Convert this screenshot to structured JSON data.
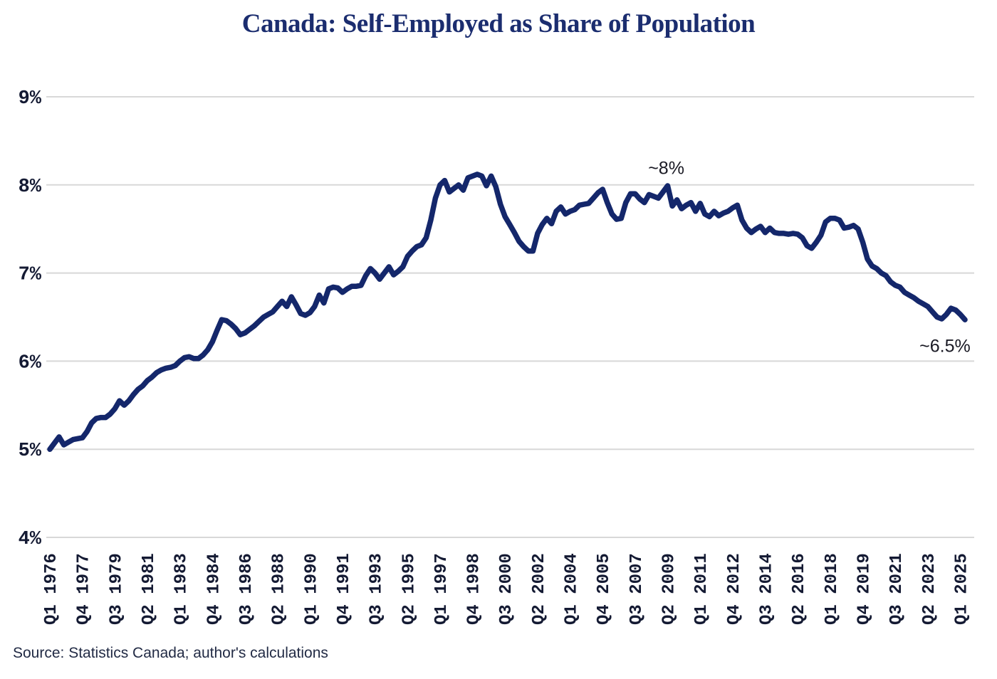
{
  "source": "Source: Statistics Canada; author's calculations",
  "chart_data": {
    "type": "line",
    "title": "Canada: Self-Employed as Share of Population",
    "xlabel": "",
    "ylabel": "",
    "ylim": [
      4,
      9
    ],
    "grid": "horizontal",
    "legend": "none",
    "y_ticks": [
      {
        "label": "9%",
        "value": 9
      },
      {
        "label": "8%",
        "value": 8
      },
      {
        "label": "7%",
        "value": 7
      },
      {
        "label": "6%",
        "value": 6
      },
      {
        "label": "5%",
        "value": 5
      },
      {
        "label": "4%",
        "value": 4
      }
    ],
    "x_tick_labels": [
      "Q1 1976",
      "Q4 1977",
      "Q3 1979",
      "Q2 1981",
      "Q1 1983",
      "Q4 1984",
      "Q3 1986",
      "Q2 1988",
      "Q1 1990",
      "Q4 1991",
      "Q3 1993",
      "Q2 1995",
      "Q1 1997",
      "Q4 1998",
      "Q3 2000",
      "Q2 2002",
      "Q1 2004",
      "Q4 2005",
      "Q3 2007",
      "Q2 2009",
      "Q1 2011",
      "Q4 2012",
      "Q3 2014",
      "Q2 2016",
      "Q1 2018",
      "Q4 2019",
      "Q3 2021",
      "Q2 2023",
      "Q1 2025"
    ],
    "x_tick_every_n_quarters": 7,
    "annotations": [
      {
        "text": "~8%",
        "q": 132.7,
        "value": 8.19
      },
      {
        "text": "~6.5%",
        "q": 192.7,
        "value": 6.17
      }
    ],
    "colors": {
      "line": "#14276b",
      "title": "#1b2d6f",
      "tick_label": "#141a33",
      "annotation": "#1a1a24",
      "grid": "#d8d8d8",
      "source": "#222b45",
      "background": "#ffffff"
    },
    "series": [
      {
        "name": "Self-employed as share of population",
        "frequency": "quarterly",
        "start": "1976Q1",
        "end": "2025Q2",
        "values": [
          5.0,
          5.07,
          5.14,
          5.05,
          5.08,
          5.11,
          5.12,
          5.13,
          5.2,
          5.3,
          5.35,
          5.36,
          5.36,
          5.4,
          5.46,
          5.55,
          5.5,
          5.55,
          5.62,
          5.68,
          5.72,
          5.78,
          5.82,
          5.87,
          5.9,
          5.92,
          5.93,
          5.95,
          6.0,
          6.04,
          6.05,
          6.03,
          6.03,
          6.07,
          6.13,
          6.22,
          6.35,
          6.47,
          6.46,
          6.42,
          6.37,
          6.3,
          6.32,
          6.36,
          6.4,
          6.45,
          6.5,
          6.53,
          6.56,
          6.62,
          6.68,
          6.62,
          6.73,
          6.64,
          6.54,
          6.52,
          6.55,
          6.62,
          6.75,
          6.66,
          6.82,
          6.84,
          6.83,
          6.78,
          6.82,
          6.85,
          6.85,
          6.86,
          6.97,
          7.05,
          7.0,
          6.93,
          7.0,
          7.07,
          6.98,
          7.02,
          7.07,
          7.19,
          7.25,
          7.3,
          7.32,
          7.4,
          7.6,
          7.85,
          8.0,
          8.05,
          7.92,
          7.96,
          8.0,
          7.94,
          8.08,
          8.1,
          8.12,
          8.1,
          7.99,
          8.1,
          7.98,
          7.78,
          7.64,
          7.55,
          7.46,
          7.36,
          7.3,
          7.25,
          7.25,
          7.45,
          7.55,
          7.62,
          7.56,
          7.7,
          7.75,
          7.67,
          7.7,
          7.72,
          7.77,
          7.78,
          7.79,
          7.85,
          7.91,
          7.95,
          7.8,
          7.67,
          7.61,
          7.62,
          7.8,
          7.9,
          7.9,
          7.84,
          7.8,
          7.89,
          7.87,
          7.85,
          7.92,
          7.99,
          7.76,
          7.83,
          7.73,
          7.77,
          7.8,
          7.7,
          7.79,
          7.67,
          7.64,
          7.7,
          7.65,
          7.68,
          7.7,
          7.74,
          7.77,
          7.6,
          7.51,
          7.46,
          7.5,
          7.53,
          7.46,
          7.51,
          7.46,
          7.45,
          7.45,
          7.44,
          7.45,
          7.44,
          7.4,
          7.31,
          7.28,
          7.35,
          7.43,
          7.58,
          7.62,
          7.62,
          7.6,
          7.51,
          7.52,
          7.54,
          7.5,
          7.35,
          7.16,
          7.08,
          7.05,
          7.0,
          6.97,
          6.9,
          6.86,
          6.84,
          6.78,
          6.75,
          6.72,
          6.68,
          6.65,
          6.62,
          6.56,
          6.5,
          6.48,
          6.53,
          6.6,
          6.58,
          6.53,
          6.47
        ]
      }
    ]
  }
}
